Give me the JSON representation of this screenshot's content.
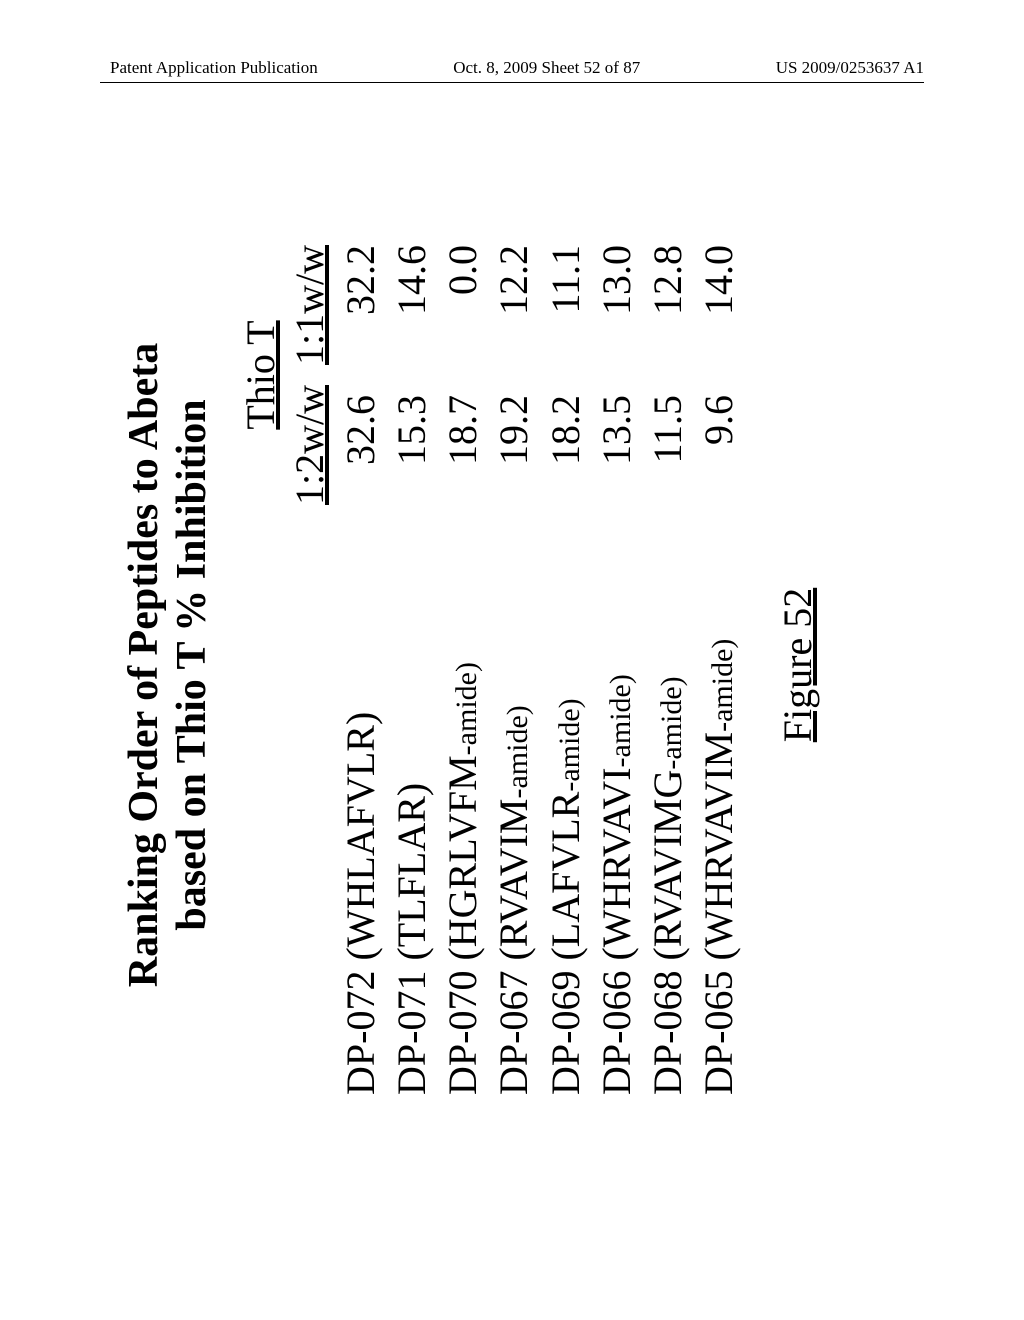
{
  "header": {
    "left": "Patent Application Publication",
    "center": "Oct. 8, 2009  Sheet 52 of 87",
    "right": "US 2009/0253637 A1"
  },
  "figure": {
    "title_line1": "Ranking Order of Peptides to Abeta",
    "title_line2": "based on Thio T  % Inhibition",
    "group_header": "Thio T",
    "col1": "1:2w/w",
    "col2": "1:1w/w",
    "rows": [
      {
        "name_main": "DP-072 (WHLAFVLR)",
        "name_suffix": "",
        "v1": "32.6",
        "v2": "32.2"
      },
      {
        "name_main": "DP-071 (TLFLAR)",
        "name_suffix": "",
        "v1": "15.3",
        "v2": "14.6"
      },
      {
        "name_main": "DP-070 (HGRLVFM",
        "name_suffix": "-amide)",
        "v1": "18.7",
        "v2": "0.0"
      },
      {
        "name_main": "DP-067 (RVAVIM",
        "name_suffix": "-amide)",
        "v1": "19.2",
        "v2": "12.2"
      },
      {
        "name_main": "DP-069 (LAFVLR",
        "name_suffix": "-amide)",
        "v1": "18.2",
        "v2": "11.1"
      },
      {
        "name_main": "DP-066 (WHRVAVI",
        "name_suffix": "-amide)",
        "v1": "13.5",
        "v2": "13.0"
      },
      {
        "name_main": "DP-068 (RVAVIMG",
        "name_suffix": "-amide)",
        "v1": "11.5",
        "v2": "12.8"
      },
      {
        "name_main": "DP-065 (WHRVAVIM",
        "name_suffix": "-amide)",
        "v1": "9.6",
        "v2": "14.0"
      }
    ],
    "caption": "Figure 52"
  }
}
